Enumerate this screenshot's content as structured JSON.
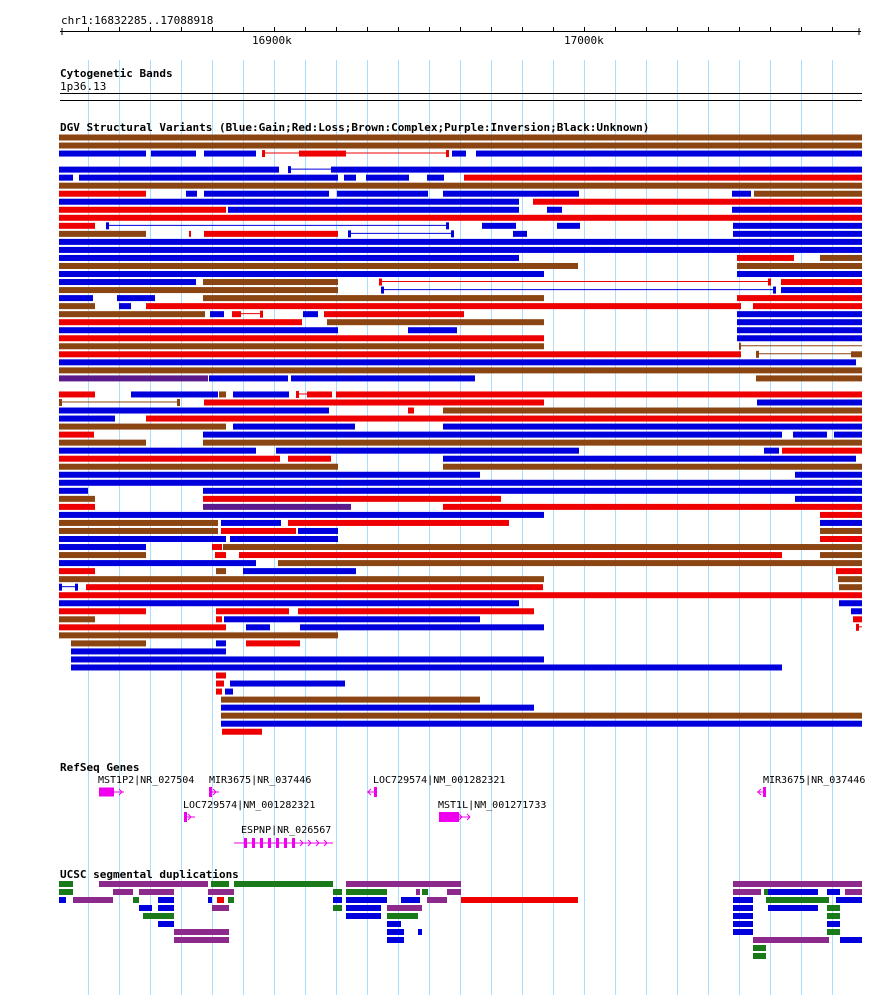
{
  "ruler": {
    "coordinate_label": "chr1:16832285..17088918",
    "tick_labels": [
      "16900k",
      "17000k"
    ]
  },
  "cytoband": {
    "title": "Cytogenetic Bands",
    "band": "1p36.13"
  },
  "dgv": {
    "title": "DGV Structural Variants (Blue:Gain;Red:Loss;Brown:Complex;Purple:Inversion;Black:Unknown)"
  },
  "refseq": {
    "title": "RefSeq Genes",
    "genes": [
      "MST1P2|NR_027504",
      "MIR3675|NR_037446",
      "LOC729574|NM_001282321",
      "MIR3675|NR_037446",
      "LOC729574|NM_001282321",
      "MST1L|NM_001271733",
      "ESPNP|NR_026567"
    ]
  },
  "segdup": {
    "title": "UCSC segmental duplications"
  },
  "colors": {
    "gain": "#0000dd",
    "loss": "#ee0000",
    "complex": "#8b4513",
    "inversion": "#5a1a8c",
    "refseq": "#ee00ee",
    "segdup_green": "#1a7a1a",
    "segdup_purple": "#8b2a8b",
    "grid": "#aaddff"
  }
}
